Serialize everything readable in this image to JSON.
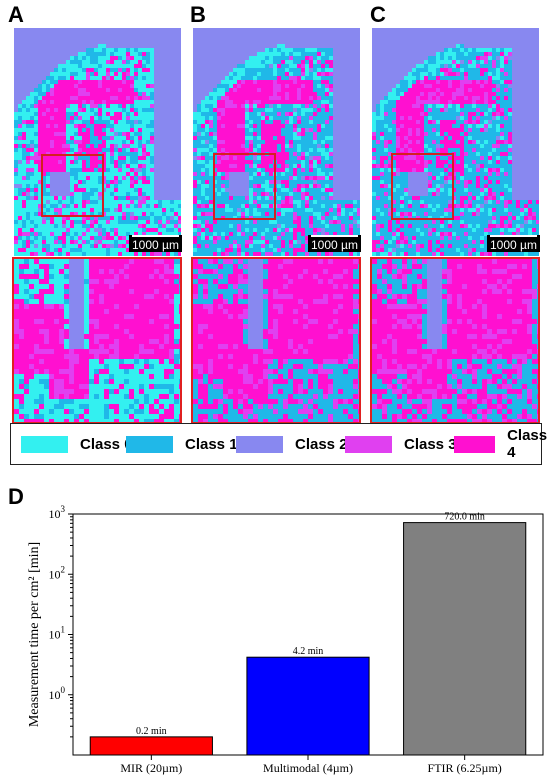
{
  "panels": {
    "a_letter": "A",
    "b_letter": "B",
    "c_letter": "C",
    "d_letter": "D"
  },
  "scale_bar_label": "1000 µm",
  "legend": {
    "items": [
      {
        "label": "Class 0",
        "color": "#33f0f0"
      },
      {
        "label": "Class 1",
        "color": "#20b8e8"
      },
      {
        "label": "Class 2",
        "color": "#8888f0"
      },
      {
        "label": "Class 3",
        "color": "#e040f0"
      },
      {
        "label": "Class 4",
        "color": "#ff10d0"
      }
    ]
  },
  "chart_data": {
    "type": "bar",
    "categories": [
      "MIR (20µm)",
      "Multimodal (4µm)",
      "FTIR (6.25µm)"
    ],
    "values": [
      0.2,
      4.2,
      720.0
    ],
    "data_labels": [
      "0.2 min",
      "4.2 min",
      "720.0 min"
    ],
    "colors": [
      "#ff0000",
      "#0000ff",
      "#808080"
    ],
    "xlabel": "",
    "ylabel": "Measurement time per cm² [min]",
    "yscale": "log",
    "ylim": [
      0.1,
      1000
    ],
    "yticks": [
      {
        "base": "10",
        "exp": "0",
        "value": 1
      },
      {
        "base": "10",
        "exp": "1",
        "value": 10
      },
      {
        "base": "10",
        "exp": "2",
        "value": 100
      },
      {
        "base": "10",
        "exp": "3",
        "value": 1000
      }
    ],
    "grid": false,
    "legend": false
  }
}
